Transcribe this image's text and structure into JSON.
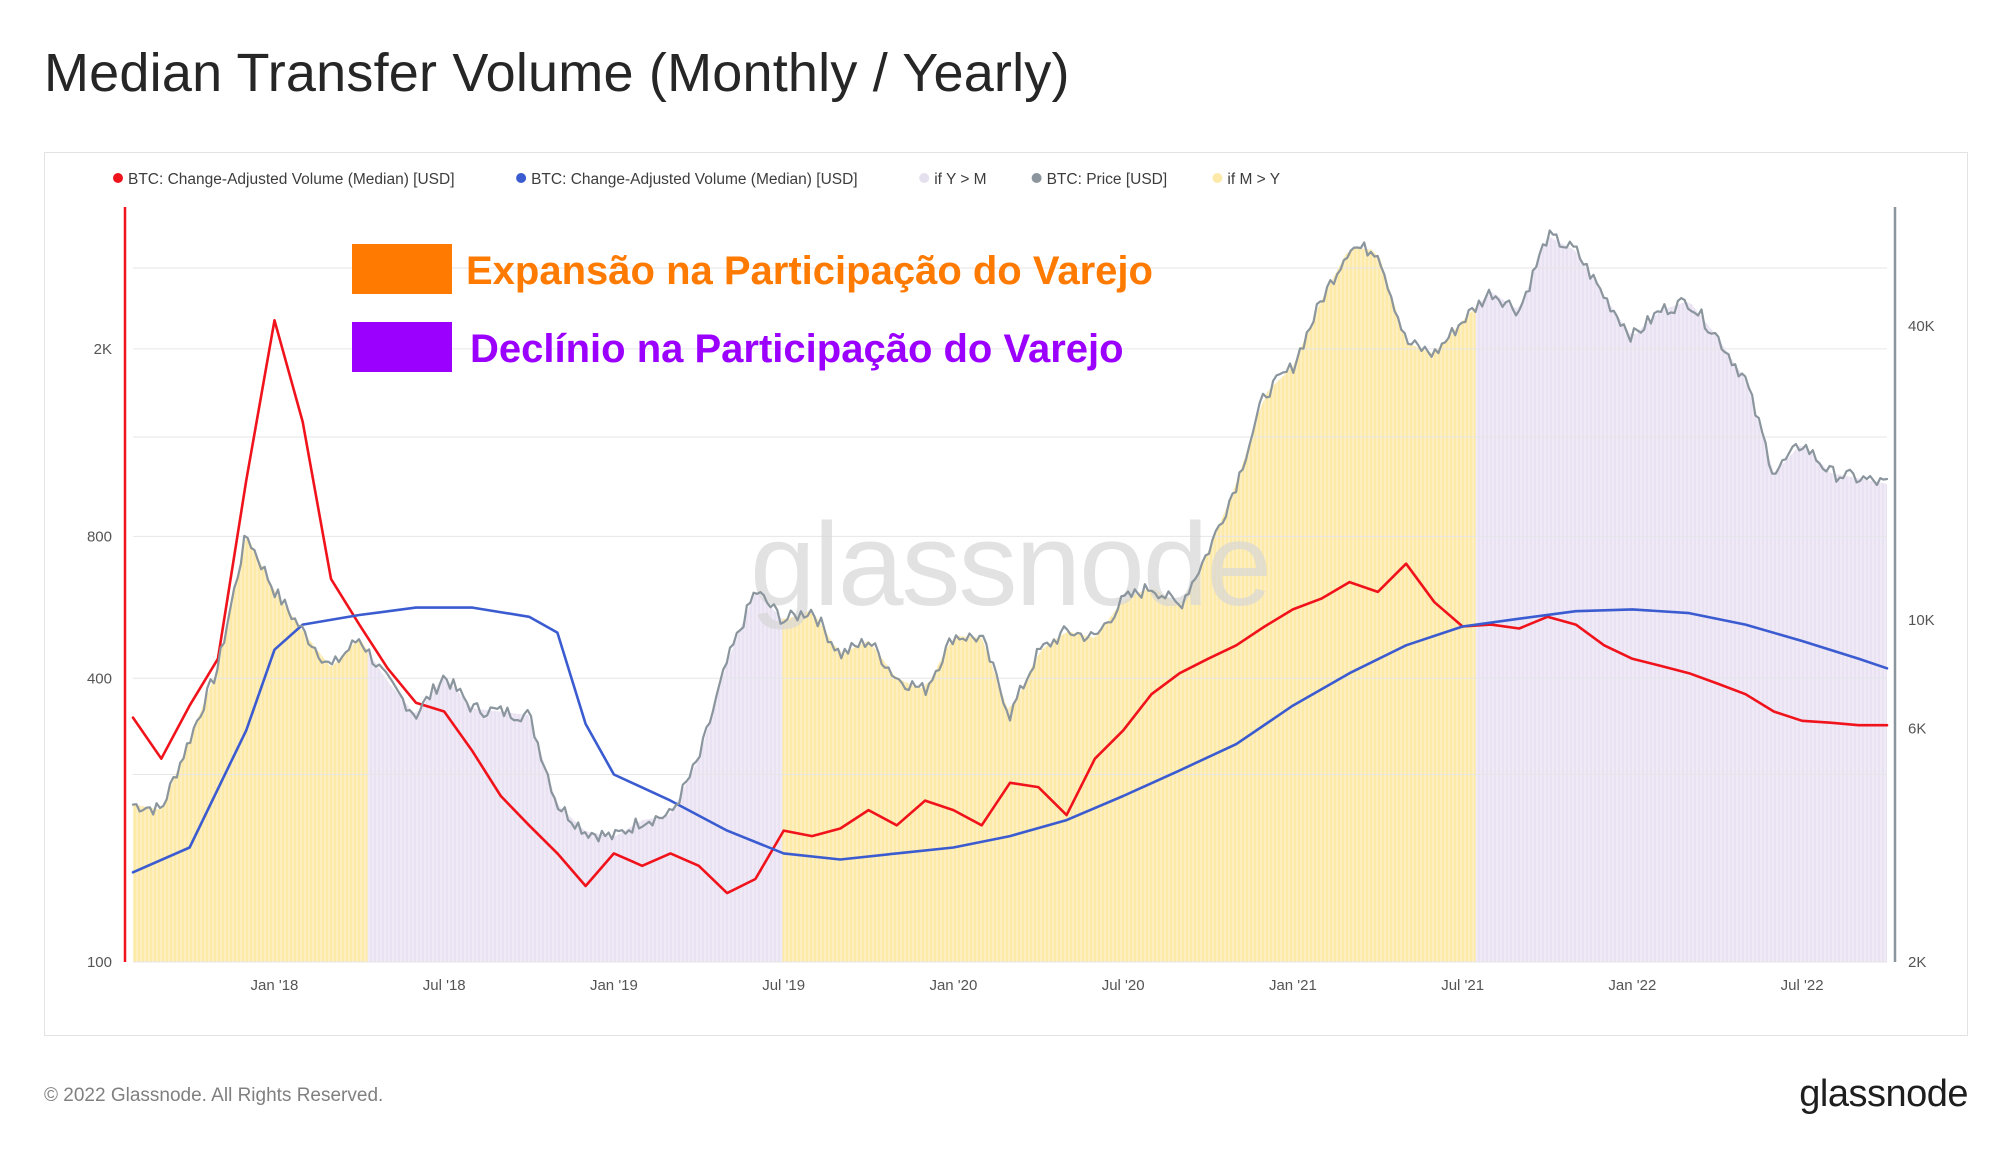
{
  "title": "Median Transfer Volume (Monthly / Yearly)",
  "footer": {
    "copyright": "© 2022 Glassnode. All Rights Reserved.",
    "brand": "glassnode"
  },
  "watermark": "glassnode",
  "colors": {
    "monthly": "#f0131b",
    "yearly": "#3b5bd0",
    "price": "#8a959d",
    "fill_expansion": "#fde9a8",
    "fill_decline": "#e9e2f3",
    "ann_expansion": "#ff7a00",
    "ann_decline": "#9b00ff",
    "left_axis": "#f0131b",
    "right_axis": "#8a959d"
  },
  "legend": [
    {
      "label": "BTC: Change-Adjusted Volume (Median) [USD]",
      "color": "#f0131b"
    },
    {
      "label": "BTC: Change-Adjusted Volume (Median) [USD]",
      "color": "#3b5bd0"
    },
    {
      "label": "if Y > M",
      "color": "#e5e0ee"
    },
    {
      "label": "BTC: Price [USD]",
      "color": "#8a959d"
    },
    {
      "label": "if M > Y",
      "color": "#fde9a8"
    }
  ],
  "annotations": [
    {
      "label": "Expansão na Participação do Varejo",
      "color": "#ff7a00"
    },
    {
      "label": "Declínio na Participação do Varejo",
      "color": "#9b00ff"
    }
  ],
  "chart_data": {
    "type": "line",
    "title": "Median Transfer Volume (Monthly / Yearly)",
    "x_ticks": [
      "Jan '18",
      "Jul '18",
      "Jan '19",
      "Jul '19",
      "Jan '20",
      "Jul '20",
      "Jan '21",
      "Jul '21",
      "Jan '22",
      "Jul '22"
    ],
    "x_range": [
      "2017-08",
      "2022-10"
    ],
    "left_axis": {
      "scale": "log",
      "ticks": [
        "2K",
        "800",
        "400",
        "100"
      ],
      "ylim": [
        100,
        4000
      ]
    },
    "right_axis": {
      "scale": "log",
      "ticks": [
        "40K",
        "10K",
        "6K",
        "2K"
      ],
      "ylim": [
        2000,
        70000
      ]
    },
    "series": [
      {
        "name": "BTC: Change-Adjusted Volume (Median) [USD] (monthly)",
        "axis": "left",
        "points": [
          [
            "2017-08",
            330
          ],
          [
            "2017-09",
            270
          ],
          [
            "2017-10",
            350
          ],
          [
            "2017-11",
            440
          ],
          [
            "2017-12",
            1050
          ],
          [
            "2018-01",
            2300
          ],
          [
            "2018-02",
            1400
          ],
          [
            "2018-03",
            650
          ],
          [
            "2018-04",
            520
          ],
          [
            "2018-05",
            420
          ],
          [
            "2018-06",
            355
          ],
          [
            "2018-07",
            340
          ],
          [
            "2018-08",
            280
          ],
          [
            "2018-09",
            225
          ],
          [
            "2018-10",
            195
          ],
          [
            "2018-11",
            170
          ],
          [
            "2018-12",
            145
          ],
          [
            "2019-01",
            170
          ],
          [
            "2019-02",
            160
          ],
          [
            "2019-03",
            170
          ],
          [
            "2019-04",
            160
          ],
          [
            "2019-05",
            140
          ],
          [
            "2019-06",
            150
          ],
          [
            "2019-07",
            190
          ],
          [
            "2019-08",
            185
          ],
          [
            "2019-09",
            192
          ],
          [
            "2019-10",
            210
          ],
          [
            "2019-11",
            195
          ],
          [
            "2019-12",
            220
          ],
          [
            "2020-01",
            210
          ],
          [
            "2020-02",
            195
          ],
          [
            "2020-03",
            240
          ],
          [
            "2020-04",
            235
          ],
          [
            "2020-05",
            205
          ],
          [
            "2020-06",
            270
          ],
          [
            "2020-07",
            310
          ],
          [
            "2020-08",
            370
          ],
          [
            "2020-09",
            410
          ],
          [
            "2020-10",
            440
          ],
          [
            "2020-11",
            470
          ],
          [
            "2020-12",
            515
          ],
          [
            "2021-01",
            560
          ],
          [
            "2021-02",
            590
          ],
          [
            "2021-03",
            640
          ],
          [
            "2021-04",
            610
          ],
          [
            "2021-05",
            700
          ],
          [
            "2021-06",
            580
          ],
          [
            "2021-07",
            515
          ],
          [
            "2021-08",
            520
          ],
          [
            "2021-09",
            510
          ],
          [
            "2021-10",
            540
          ],
          [
            "2021-11",
            520
          ],
          [
            "2021-12",
            470
          ],
          [
            "2022-01",
            440
          ],
          [
            "2022-02",
            425
          ],
          [
            "2022-03",
            410
          ],
          [
            "2022-04",
            390
          ],
          [
            "2022-05",
            370
          ],
          [
            "2022-06",
            340
          ],
          [
            "2022-07",
            325
          ],
          [
            "2022-08",
            322
          ],
          [
            "2022-09",
            318
          ],
          [
            "2022-10",
            318
          ]
        ]
      },
      {
        "name": "BTC: Change-Adjusted Volume (Median) [USD] (yearly)",
        "axis": "left",
        "points": [
          [
            "2017-08",
            155
          ],
          [
            "2017-10",
            175
          ],
          [
            "2017-12",
            310
          ],
          [
            "2018-01",
            460
          ],
          [
            "2018-02",
            520
          ],
          [
            "2018-04",
            545
          ],
          [
            "2018-06",
            565
          ],
          [
            "2018-08",
            565
          ],
          [
            "2018-10",
            540
          ],
          [
            "2018-11",
            500
          ],
          [
            "2018-12",
            320
          ],
          [
            "2019-01",
            250
          ],
          [
            "2019-03",
            220
          ],
          [
            "2019-05",
            190
          ],
          [
            "2019-07",
            170
          ],
          [
            "2019-09",
            165
          ],
          [
            "2019-11",
            170
          ],
          [
            "2020-01",
            175
          ],
          [
            "2020-03",
            185
          ],
          [
            "2020-05",
            200
          ],
          [
            "2020-07",
            225
          ],
          [
            "2020-09",
            255
          ],
          [
            "2020-11",
            290
          ],
          [
            "2021-01",
            350
          ],
          [
            "2021-03",
            410
          ],
          [
            "2021-05",
            470
          ],
          [
            "2021-07",
            515
          ],
          [
            "2021-09",
            535
          ],
          [
            "2021-11",
            555
          ],
          [
            "2022-01",
            560
          ],
          [
            "2022-03",
            550
          ],
          [
            "2022-05",
            520
          ],
          [
            "2022-07",
            480
          ],
          [
            "2022-09",
            440
          ],
          [
            "2022-10",
            420
          ]
        ]
      },
      {
        "name": "BTC: Price [USD]",
        "axis": "right",
        "points": [
          [
            "2017-08",
            4200
          ],
          [
            "2017-09",
            4100
          ],
          [
            "2017-10",
            5700
          ],
          [
            "2017-11",
            8000
          ],
          [
            "2017-12",
            15000
          ],
          [
            "2018-01",
            11500
          ],
          [
            "2018-02",
            9500
          ],
          [
            "2018-03",
            8000
          ],
          [
            "2018-04",
            9200
          ],
          [
            "2018-05",
            7500
          ],
          [
            "2018-06",
            6400
          ],
          [
            "2018-07",
            7700
          ],
          [
            "2018-08",
            6600
          ],
          [
            "2018-09",
            6500
          ],
          [
            "2018-10",
            6400
          ],
          [
            "2018-11",
            4200
          ],
          [
            "2018-12",
            3700
          ],
          [
            "2019-01",
            3600
          ],
          [
            "2019-02",
            3900
          ],
          [
            "2019-03",
            4000
          ],
          [
            "2019-04",
            5200
          ],
          [
            "2019-05",
            8200
          ],
          [
            "2019-06",
            11500
          ],
          [
            "2019-07",
            10000
          ],
          [
            "2019-08",
            10500
          ],
          [
            "2019-09",
            8500
          ],
          [
            "2019-10",
            9100
          ],
          [
            "2019-11",
            7600
          ],
          [
            "2019-12",
            7200
          ],
          [
            "2020-01",
            9300
          ],
          [
            "2020-02",
            9200
          ],
          [
            "2020-03",
            6400
          ],
          [
            "2020-04",
            8600
          ],
          [
            "2020-05",
            9500
          ],
          [
            "2020-06",
            9200
          ],
          [
            "2020-07",
            11000
          ],
          [
            "2020-08",
            11700
          ],
          [
            "2020-09",
            10700
          ],
          [
            "2020-10",
            13800
          ],
          [
            "2020-11",
            19000
          ],
          [
            "2020-12",
            29000
          ],
          [
            "2021-01",
            33000
          ],
          [
            "2021-02",
            45000
          ],
          [
            "2021-03",
            58000
          ],
          [
            "2021-04",
            57000
          ],
          [
            "2021-05",
            37000
          ],
          [
            "2021-06",
            35000
          ],
          [
            "2021-07",
            41000
          ],
          [
            "2021-08",
            47000
          ],
          [
            "2021-09",
            43000
          ],
          [
            "2021-10",
            61000
          ],
          [
            "2021-11",
            57000
          ],
          [
            "2021-12",
            46000
          ],
          [
            "2022-01",
            38000
          ],
          [
            "2022-02",
            43000
          ],
          [
            "2022-03",
            45000
          ],
          [
            "2022-04",
            38000
          ],
          [
            "2022-05",
            31000
          ],
          [
            "2022-06",
            20000
          ],
          [
            "2022-07",
            23000
          ],
          [
            "2022-08",
            20000
          ],
          [
            "2022-09",
            19500
          ],
          [
            "2022-10",
            19000
          ]
        ]
      }
    ],
    "regions": [
      {
        "label": "if M > Y",
        "from": "2017-08",
        "to": "2018-04-10"
      },
      {
        "label": "if Y > M",
        "from": "2018-04-10",
        "to": "2019-06-30"
      },
      {
        "label": "if M > Y",
        "from": "2019-06-30",
        "to": "2021-07-15"
      },
      {
        "label": "if Y > M",
        "from": "2021-07-15",
        "to": "2022-10"
      }
    ]
  }
}
